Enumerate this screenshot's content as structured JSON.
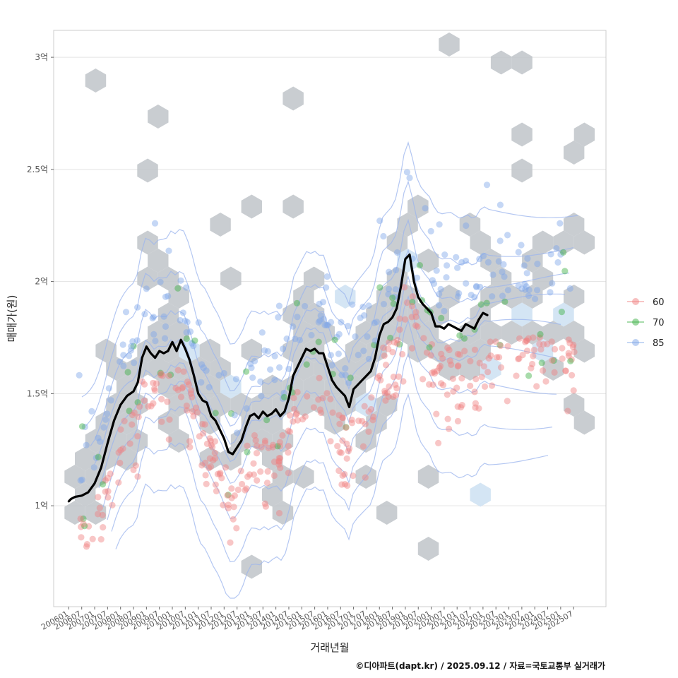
{
  "chart_data": {
    "type": "scatter",
    "xlabel": "거래년월",
    "ylabel": "매매가(원)",
    "caption": "©디아파트(dapt.kr) / 2025.09.12 / 자료=국토교통부 실거래가",
    "ylim": [
      0.55,
      3.12
    ],
    "y_unit": "억",
    "y_ticks": [
      {
        "value": 1,
        "label": "1억"
      },
      {
        "value": 1.5,
        "label": "1.5억"
      },
      {
        "value": 2,
        "label": "2억"
      },
      {
        "value": 2.5,
        "label": "2.5억"
      },
      {
        "value": 3,
        "label": "3억"
      }
    ],
    "x_range": [
      "2005-06",
      "2026-10"
    ],
    "x_ticks": [
      "200601",
      "200607",
      "200701",
      "200707",
      "200801",
      "200807",
      "200901",
      "200907",
      "201001",
      "201007",
      "201101",
      "201107",
      "201201",
      "201207",
      "201301",
      "201307",
      "201401",
      "201407",
      "201501",
      "201507",
      "201601",
      "201607",
      "201701",
      "201707",
      "201801",
      "201807",
      "201901",
      "201907",
      "202001",
      "202007",
      "202101",
      "202107",
      "202201",
      "202207",
      "202301",
      "202307",
      "202401",
      "202407",
      "202501",
      "202507"
    ],
    "grid": true,
    "legend": {
      "position": "right",
      "entries": [
        {
          "label": "60",
          "color": "#f08080"
        },
        {
          "label": "70",
          "color": "#3cb043"
        },
        {
          "label": "85",
          "color": "#7ea6e8"
        }
      ]
    },
    "layers": [
      "hexbin-density",
      "density-contours",
      "scatter",
      "moving-average-line"
    ],
    "hexbin_color": "#b8bec4",
    "contour_color": "#9bb4ee",
    "trend_line": {
      "name": "",
      "color": "#000000",
      "points": [
        [
          "2006-01",
          1.02
        ],
        [
          "2006-02",
          1.03
        ],
        [
          "2006-04",
          1.04
        ],
        [
          "2006-07",
          1.045
        ],
        [
          "2006-10",
          1.06
        ],
        [
          "2007-01",
          1.1
        ],
        [
          "2007-04",
          1.17
        ],
        [
          "2007-07",
          1.28
        ],
        [
          "2007-10",
          1.38
        ],
        [
          "2008-01",
          1.45
        ],
        [
          "2008-04",
          1.49
        ],
        [
          "2008-07",
          1.51
        ],
        [
          "2008-09",
          1.55
        ],
        [
          "2008-11",
          1.66
        ],
        [
          "2009-01",
          1.71
        ],
        [
          "2009-03",
          1.68
        ],
        [
          "2009-05",
          1.66
        ],
        [
          "2009-07",
          1.69
        ],
        [
          "2009-09",
          1.68
        ],
        [
          "2009-11",
          1.69
        ],
        [
          "2010-01",
          1.73
        ],
        [
          "2010-03",
          1.69
        ],
        [
          "2010-05",
          1.74
        ],
        [
          "2010-07",
          1.7
        ],
        [
          "2010-09",
          1.65
        ],
        [
          "2010-11",
          1.58
        ],
        [
          "2011-01",
          1.5
        ],
        [
          "2011-03",
          1.47
        ],
        [
          "2011-05",
          1.46
        ],
        [
          "2011-07",
          1.4
        ],
        [
          "2011-09",
          1.38
        ],
        [
          "2011-11",
          1.34
        ],
        [
          "2012-01",
          1.3
        ],
        [
          "2012-03",
          1.24
        ],
        [
          "2012-05",
          1.23
        ],
        [
          "2012-07",
          1.26
        ],
        [
          "2012-09",
          1.29
        ],
        [
          "2012-11",
          1.35
        ],
        [
          "2013-01",
          1.4
        ],
        [
          "2013-03",
          1.41
        ],
        [
          "2013-05",
          1.39
        ],
        [
          "2013-07",
          1.42
        ],
        [
          "2013-09",
          1.4
        ],
        [
          "2013-11",
          1.41
        ],
        [
          "2014-01",
          1.43
        ],
        [
          "2014-03",
          1.4
        ],
        [
          "2014-05",
          1.42
        ],
        [
          "2014-07",
          1.48
        ],
        [
          "2014-09",
          1.58
        ],
        [
          "2014-11",
          1.62
        ],
        [
          "2015-01",
          1.66
        ],
        [
          "2015-03",
          1.7
        ],
        [
          "2015-05",
          1.69
        ],
        [
          "2015-07",
          1.7
        ],
        [
          "2015-09",
          1.68
        ],
        [
          "2015-11",
          1.68
        ],
        [
          "2016-01",
          1.62
        ],
        [
          "2016-03",
          1.56
        ],
        [
          "2016-05",
          1.53
        ],
        [
          "2016-07",
          1.51
        ],
        [
          "2016-09",
          1.49
        ],
        [
          "2016-11",
          1.44
        ],
        [
          "2017-01",
          1.52
        ],
        [
          "2017-03",
          1.54
        ],
        [
          "2017-05",
          1.56
        ],
        [
          "2017-07",
          1.58
        ],
        [
          "2017-09",
          1.6
        ],
        [
          "2017-11",
          1.66
        ],
        [
          "2018-01",
          1.76
        ],
        [
          "2018-03",
          1.81
        ],
        [
          "2018-05",
          1.82
        ],
        [
          "2018-07",
          1.84
        ],
        [
          "2018-09",
          1.88
        ],
        [
          "2018-11",
          1.98
        ],
        [
          "2019-01",
          2.1
        ],
        [
          "2019-03",
          2.12
        ],
        [
          "2019-05",
          2.0
        ],
        [
          "2019-07",
          1.93
        ],
        [
          "2019-09",
          1.9
        ],
        [
          "2019-11",
          1.88
        ],
        [
          "2020-01",
          1.86
        ],
        [
          "2020-03",
          1.8
        ],
        [
          "2020-05",
          1.8
        ],
        [
          "2020-07",
          1.79
        ],
        [
          "2020-09",
          1.81
        ],
        [
          "2020-11",
          1.8
        ],
        [
          "2021-01",
          1.79
        ],
        [
          "2021-03",
          1.78
        ],
        [
          "2021-05",
          1.81
        ],
        [
          "2021-07",
          1.8
        ],
        [
          "2021-09",
          1.79
        ],
        [
          "2021-11",
          1.83
        ],
        [
          "2022-01",
          1.86
        ],
        [
          "2022-03",
          1.85
        ]
      ]
    }
  }
}
